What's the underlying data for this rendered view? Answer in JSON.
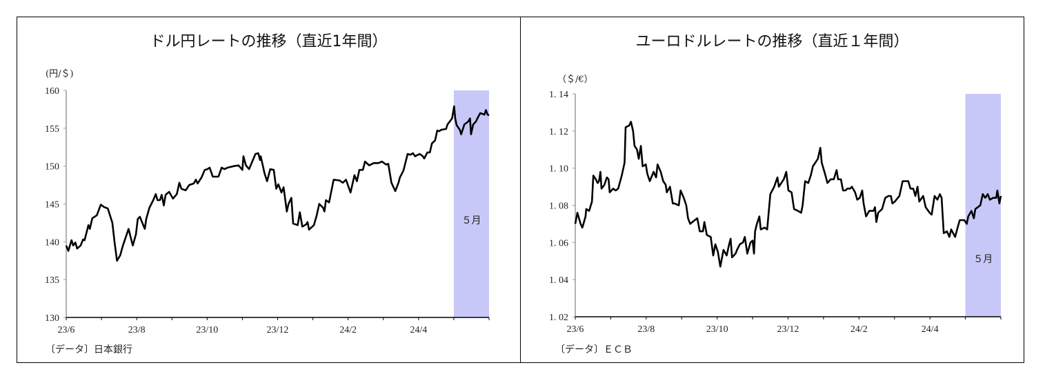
{
  "chart_data": [
    {
      "type": "line",
      "title": "ドル円レートの推移（直近1年間）",
      "ylabel": "(円/＄)",
      "source": "〔データ〕日本銀行",
      "ylim": [
        130,
        160
      ],
      "yticks": [
        "130",
        "135",
        "140",
        "145",
        "150",
        "155",
        "160"
      ],
      "xlim": [
        0,
        12
      ],
      "xtick_labels": [
        "23/6",
        "23/8",
        "23/10",
        "23/12",
        "24/2",
        "24/4"
      ],
      "x_unit": "months since 2023-06-01",
      "highlight": {
        "from": 11,
        "to": 12,
        "label": "５月",
        "color": "#c8c8f8"
      },
      "grid": false,
      "series": [
        {
          "name": "USD/JPY",
          "x": [
            0,
            0.06,
            0.15,
            0.2,
            0.26,
            0.31,
            0.41,
            0.48,
            0.52,
            0.63,
            0.67,
            0.74,
            0.87,
            0.98,
            1.07,
            1.18,
            1.31,
            1.37,
            1.44,
            1.53,
            1.61,
            1.77,
            1.89,
            1.98,
            2.03,
            2.09,
            2.23,
            2.27,
            2.36,
            2.47,
            2.54,
            2.59,
            2.66,
            2.71,
            2.77,
            2.82,
            2.92,
            3.03,
            3.14,
            3.21,
            3.27,
            3.39,
            3.49,
            3.62,
            3.68,
            3.73,
            3.84,
            3.93,
            4.01,
            4.07,
            4.16,
            4.32,
            4.41,
            4.49,
            4.58,
            4.76,
            4.89,
            5.0,
            5.03,
            5.1,
            5.19,
            5.37,
            5.45,
            5.5,
            5.52,
            5.63,
            5.7,
            5.79,
            5.89,
            5.96,
            6.02,
            6.11,
            6.17,
            6.26,
            6.31,
            6.39,
            6.44,
            6.57,
            6.63,
            6.7,
            6.81,
            6.85,
            6.89,
            7.03,
            7.11,
            7.18,
            7.29,
            7.33,
            7.37,
            7.46,
            7.59,
            7.76,
            7.85,
            7.94,
            8.07,
            8.18,
            8.25,
            8.32,
            8.42,
            8.48,
            8.6,
            8.73,
            8.86,
            8.96,
            9.08,
            9.14,
            9.23,
            9.34,
            9.43,
            9.47,
            9.57,
            9.69,
            9.77,
            9.84,
            9.9,
            10.03,
            10.12,
            10.16,
            10.25,
            10.32,
            10.38,
            10.47,
            10.53,
            10.58,
            10.65,
            10.78,
            10.82,
            10.95,
            11.01,
            11.04,
            11.08,
            11.17,
            11.21,
            11.3,
            11.41,
            11.46,
            11.49,
            11.55,
            11.63,
            11.67,
            11.75,
            11.87,
            11.91,
            11.96,
            12
          ],
          "y": [
            139.5,
            138.8,
            140.2,
            139.5,
            139.9,
            139.1,
            139.5,
            140.3,
            140.2,
            142.2,
            141.7,
            143.1,
            143.5,
            144.9,
            144.6,
            144.4,
            142.5,
            140,
            137.5,
            138.2,
            139.5,
            141.7,
            139.5,
            141,
            143,
            143.3,
            141.7,
            143,
            144.5,
            145.5,
            146.3,
            145.5,
            145.5,
            146.2,
            144.8,
            146.2,
            146.6,
            145.7,
            146.3,
            147.8,
            147,
            146.8,
            147.5,
            147.7,
            148.2,
            147.7,
            148.5,
            149.5,
            149.6,
            149.8,
            148.6,
            148.6,
            149.8,
            149.6,
            149.8,
            150,
            150.1,
            149.5,
            151.3,
            150.1,
            149.6,
            151.6,
            151.7,
            150.8,
            151.3,
            149,
            148,
            149.6,
            149.5,
            147,
            147.6,
            146.5,
            147.2,
            144,
            145,
            145.8,
            142.4,
            142.2,
            143.9,
            142,
            142.3,
            142.6,
            141.6,
            142.2,
            143.5,
            145,
            144.5,
            144,
            145.5,
            145.2,
            148.2,
            148.1,
            147.8,
            148.2,
            146.5,
            148.8,
            148,
            149.5,
            149.5,
            150.6,
            150.1,
            150.4,
            150.4,
            150.6,
            150.2,
            150.3,
            147.8,
            146.7,
            147.8,
            148.5,
            149.4,
            151.6,
            151.5,
            151.7,
            151.3,
            151.6,
            151.3,
            151,
            151.8,
            151.8,
            153,
            153.4,
            154.7,
            154.6,
            154.8,
            154.9,
            155.5,
            156.3,
            157.9,
            156.3,
            155.4,
            154.8,
            154.2,
            155.5,
            155.9,
            156.3,
            154.2,
            155.5,
            155.9,
            156.3,
            157,
            156.8,
            157.4,
            156.8,
            156.7
          ]
        }
      ]
    },
    {
      "type": "line",
      "title": "ユーロドルレートの推移（直近１年間）",
      "ylabel": "（＄/€）",
      "source": "〔データ〕ＥＣＢ",
      "ylim": [
        1.02,
        1.14
      ],
      "yticks": [
        "1.02",
        "1.04",
        "1.06",
        "1.08",
        "1.10",
        "1.12",
        "1.14"
      ],
      "xlim": [
        0,
        12
      ],
      "xtick_labels": [
        "23/6",
        "23/8",
        "23/10",
        "23/12",
        "24/2",
        "24/4"
      ],
      "x_unit": "months since 2023-06-01",
      "highlight": {
        "from": 11,
        "to": 12,
        "label": "５月",
        "color": "#c8c8f8"
      },
      "grid": false,
      "series": [
        {
          "name": "EUR/USD",
          "x": [
            0,
            0.06,
            0.15,
            0.2,
            0.29,
            0.31,
            0.39,
            0.47,
            0.51,
            0.58,
            0.63,
            0.67,
            0.71,
            0.74,
            0.82,
            0.89,
            0.94,
            0.97,
            1.07,
            1.14,
            1.21,
            1.31,
            1.39,
            1.42,
            1.52,
            1.57,
            1.63,
            1.67,
            1.74,
            1.79,
            1.85,
            1.9,
            1.99,
            2.03,
            2.1,
            2.21,
            2.28,
            2.32,
            2.41,
            2.48,
            2.55,
            2.58,
            2.67,
            2.75,
            2.79,
            2.92,
            2.97,
            3.06,
            3.13,
            3.18,
            3.24,
            3.37,
            3.44,
            3.51,
            3.6,
            3.64,
            3.71,
            3.82,
            3.89,
            3.95,
            4.02,
            4.09,
            4.18,
            4.27,
            4.34,
            4.38,
            4.42,
            4.52,
            4.56,
            4.64,
            4.73,
            4.78,
            4.85,
            4.94,
            5.0,
            5.04,
            5.07,
            5.12,
            5.19,
            5.23,
            5.34,
            5.41,
            5.5,
            5.61,
            5.7,
            5.74,
            5.88,
            5.95,
            6.01,
            6.1,
            6.17,
            6.28,
            6.37,
            6.41,
            6.48,
            6.57,
            6.64,
            6.7,
            6.77,
            6.84,
            6.91,
            6.95,
            7.04,
            7.11,
            7.2,
            7.29,
            7.37,
            7.41,
            7.49,
            7.55,
            7.62,
            7.67,
            7.75,
            7.8,
            7.89,
            7.95,
            8.02,
            8.09,
            8.13,
            8.2,
            8.29,
            8.41,
            8.45,
            8.49,
            8.54,
            8.65,
            8.74,
            8.83,
            8.9,
            8.94,
            9.01,
            9.14,
            9.23,
            9.32,
            9.39,
            9.45,
            9.53,
            9.59,
            9.65,
            9.7,
            9.81,
            9.88,
            9.99,
            10.05,
            10.13,
            10.21,
            10.28,
            10.33,
            10.39,
            10.48,
            10.55,
            10.6,
            10.71,
            10.78,
            10.84,
            10.97,
            11.04,
            11.08,
            11.17,
            11.24,
            11.28,
            11.42,
            11.49,
            11.56,
            11.63,
            11.69,
            11.78,
            11.87,
            11.9,
            11.96,
            12
          ],
          "y": [
            1.07,
            1.076,
            1.07,
            1.068,
            1.074,
            1.078,
            1.077,
            1.082,
            1.096,
            1.094,
            1.092,
            1.093,
            1.098,
            1.089,
            1.091,
            1.095,
            1.094,
            1.087,
            1.089,
            1.088,
            1.089,
            1.096,
            1.103,
            1.122,
            1.123,
            1.125,
            1.12,
            1.112,
            1.11,
            1.105,
            1.112,
            1.101,
            1.102,
            1.097,
            1.093,
            1.098,
            1.095,
            1.102,
            1.098,
            1.093,
            1.091,
            1.087,
            1.09,
            1.081,
            1.081,
            1.08,
            1.088,
            1.084,
            1.08,
            1.073,
            1.07,
            1.072,
            1.073,
            1.066,
            1.066,
            1.071,
            1.064,
            1.063,
            1.053,
            1.059,
            1.055,
            1.047,
            1.056,
            1.053,
            1.059,
            1.062,
            1.052,
            1.054,
            1.056,
            1.059,
            1.06,
            1.063,
            1.054,
            1.06,
            1.061,
            1.054,
            1.066,
            1.07,
            1.074,
            1.067,
            1.068,
            1.067,
            1.086,
            1.09,
            1.095,
            1.09,
            1.094,
            1.098,
            1.088,
            1.087,
            1.078,
            1.077,
            1.076,
            1.08,
            1.093,
            1.092,
            1.096,
            1.101,
            1.103,
            1.105,
            1.111,
            1.103,
            1.097,
            1.092,
            1.094,
            1.094,
            1.099,
            1.094,
            1.094,
            1.088,
            1.088,
            1.089,
            1.089,
            1.09,
            1.087,
            1.083,
            1.084,
            1.088,
            1.081,
            1.074,
            1.077,
            1.077,
            1.079,
            1.071,
            1.076,
            1.078,
            1.084,
            1.085,
            1.085,
            1.081,
            1.082,
            1.085,
            1.093,
            1.093,
            1.093,
            1.089,
            1.089,
            1.085,
            1.09,
            1.082,
            1.085,
            1.079,
            1.076,
            1.075,
            1.085,
            1.083,
            1.086,
            1.084,
            1.065,
            1.066,
            1.063,
            1.067,
            1.063,
            1.068,
            1.072,
            1.072,
            1.07,
            1.074,
            1.077,
            1.073,
            1.078,
            1.08,
            1.086,
            1.084,
            1.086,
            1.083,
            1.084,
            1.084,
            1.088,
            1.081,
            1.085
          ]
        }
      ]
    }
  ]
}
